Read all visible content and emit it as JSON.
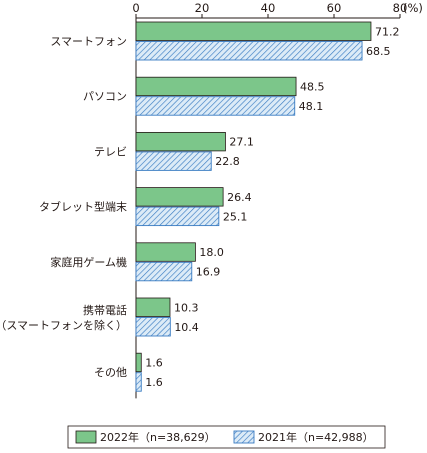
{
  "chart_data": {
    "type": "bar",
    "orientation": "horizontal",
    "categories": [
      [
        "スマートフォン"
      ],
      [
        "パソコン"
      ],
      [
        "テレビ"
      ],
      [
        "タブレット型端末"
      ],
      [
        "家庭用ゲーム機"
      ],
      [
        "携帯電話",
        "（スマートフォンを除く）"
      ],
      [
        "その他"
      ]
    ],
    "series": [
      {
        "name": "2022年（n=38,629）",
        "values": [
          71.2,
          48.5,
          27.1,
          26.4,
          18.0,
          10.3,
          1.6
        ],
        "labels": [
          "71.2",
          "48.5",
          "27.1",
          "26.4",
          "18.0",
          "10.3",
          "1.6"
        ],
        "color": "#7cc68a",
        "pattern": "solid"
      },
      {
        "name": "2021年（n=42,988）",
        "values": [
          68.5,
          48.1,
          22.8,
          25.1,
          16.9,
          10.4,
          1.6
        ],
        "labels": [
          "68.5",
          "48.1",
          "22.8",
          "25.1",
          "16.9",
          "10.4",
          "1.6"
        ],
        "color": "#3a7cc2",
        "pattern": "hatched"
      }
    ],
    "xlim": [
      0,
      80
    ],
    "ticks": [
      "0",
      "20",
      "40",
      "60",
      "80"
    ],
    "unit": "(%)",
    "grid": false,
    "legend_position": "bottom"
  }
}
